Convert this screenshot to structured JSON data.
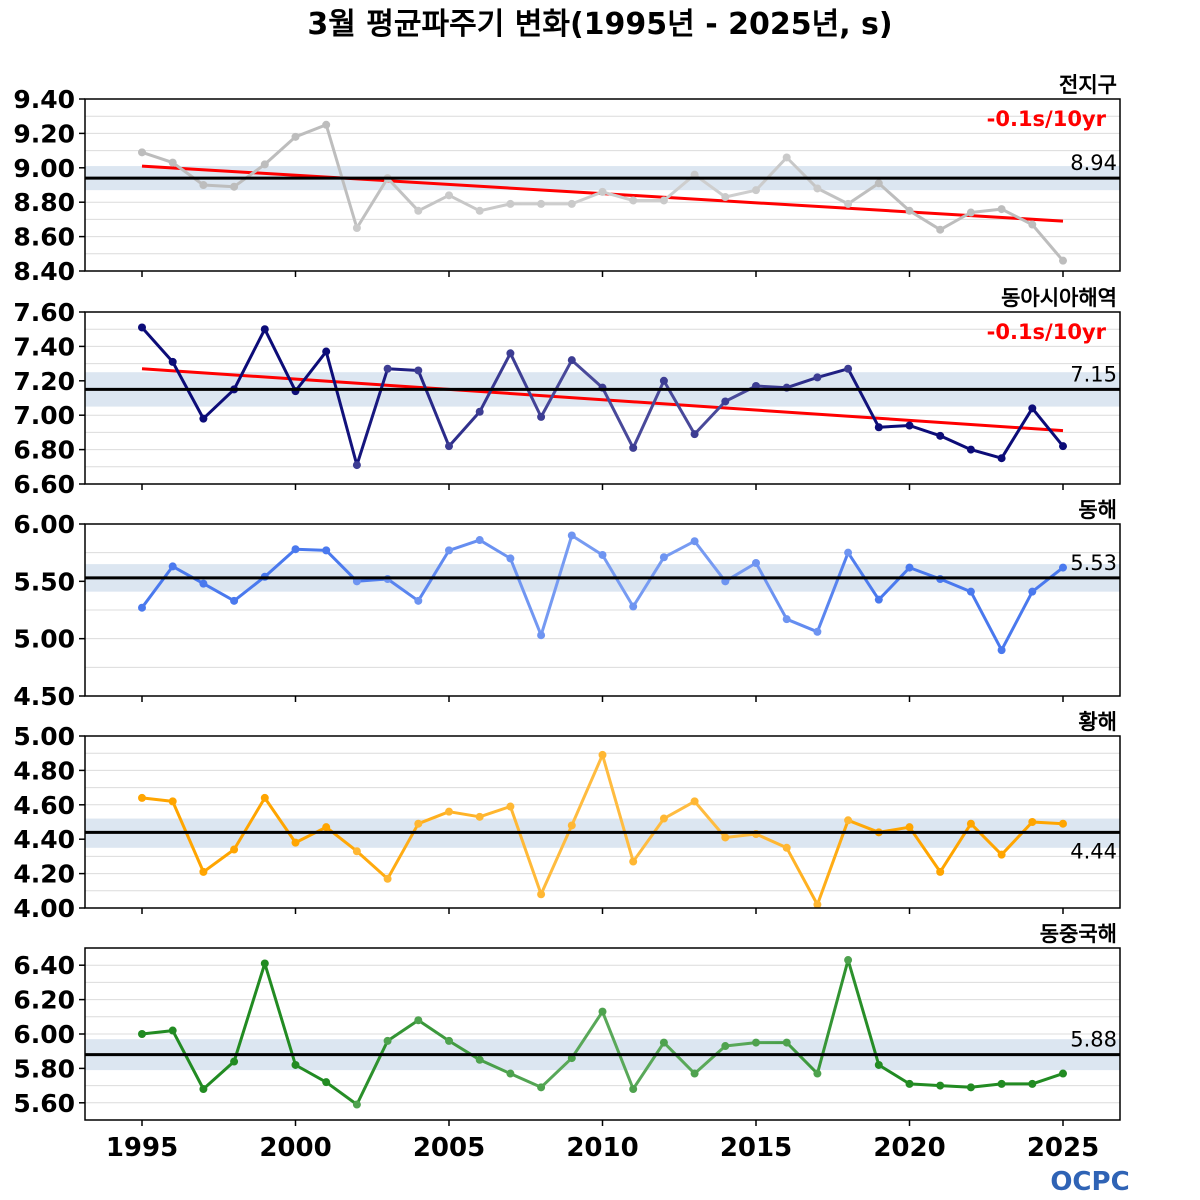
{
  "title": "3월 평균파주기 변화(1995년 - 2025년, s)",
  "logo": "OCPC",
  "x_ticks": [
    1995,
    2000,
    2005,
    2010,
    2015,
    2020,
    2025
  ],
  "chart_data": [
    {
      "type": "line",
      "region": "전지구",
      "color": "#bdbdbd",
      "x": [
        1995,
        1996,
        1997,
        1998,
        1999,
        2000,
        2001,
        2002,
        2003,
        2004,
        2005,
        2006,
        2007,
        2008,
        2009,
        2010,
        2011,
        2012,
        2013,
        2014,
        2015,
        2016,
        2017,
        2018,
        2019,
        2020,
        2021,
        2022,
        2023,
        2024,
        2025
      ],
      "values": [
        9.09,
        9.03,
        8.9,
        8.89,
        9.02,
        9.18,
        9.25,
        8.65,
        8.94,
        8.75,
        8.84,
        8.75,
        8.79,
        8.79,
        8.79,
        8.86,
        8.81,
        8.81,
        8.96,
        8.83,
        8.87,
        9.06,
        8.88,
        8.79,
        8.91,
        8.75,
        8.64,
        8.74,
        8.76,
        8.67,
        8.46
      ],
      "ylim": [
        8.4,
        9.4
      ],
      "yticks": [
        "9.40",
        "9.20",
        "9.00",
        "8.80",
        "8.60",
        "8.40"
      ],
      "mean": 8.94,
      "mean_label": "8.94",
      "mean_label_pos": "above",
      "band": [
        8.87,
        9.01
      ],
      "trend": {
        "label": "-0.1s/10yr",
        "start": 9.01,
        "end": 8.69
      }
    },
    {
      "type": "line",
      "region": "동아시아해역",
      "color": "#0c0c78",
      "x": [
        1995,
        1996,
        1997,
        1998,
        1999,
        2000,
        2001,
        2002,
        2003,
        2004,
        2005,
        2006,
        2007,
        2008,
        2009,
        2010,
        2011,
        2012,
        2013,
        2014,
        2015,
        2016,
        2017,
        2018,
        2019,
        2020,
        2021,
        2022,
        2023,
        2024,
        2025
      ],
      "values": [
        7.51,
        7.31,
        6.98,
        7.15,
        7.5,
        7.14,
        7.37,
        6.71,
        7.27,
        7.26,
        6.82,
        7.02,
        7.36,
        6.99,
        7.32,
        7.16,
        6.81,
        7.2,
        6.89,
        7.08,
        7.17,
        7.16,
        7.22,
        7.27,
        6.93,
        6.94,
        6.88,
        6.8,
        6.75,
        7.04,
        6.82
      ],
      "ylim": [
        6.6,
        7.6
      ],
      "yticks": [
        "7.60",
        "7.40",
        "7.20",
        "7.00",
        "6.80",
        "6.60"
      ],
      "mean": 7.15,
      "mean_label": "7.15",
      "mean_label_pos": "above",
      "band": [
        7.05,
        7.25
      ],
      "trend": {
        "label": "-0.1s/10yr",
        "start": 7.27,
        "end": 6.91
      }
    },
    {
      "type": "line",
      "region": "동해",
      "color": "#4a79ee",
      "x": [
        1995,
        1996,
        1997,
        1998,
        1999,
        2000,
        2001,
        2002,
        2003,
        2004,
        2005,
        2006,
        2007,
        2008,
        2009,
        2010,
        2011,
        2012,
        2013,
        2014,
        2015,
        2016,
        2017,
        2018,
        2019,
        2020,
        2021,
        2022,
        2023,
        2024,
        2025
      ],
      "values": [
        5.27,
        5.63,
        5.48,
        5.33,
        5.54,
        5.78,
        5.77,
        5.5,
        5.52,
        5.33,
        5.77,
        5.86,
        5.7,
        5.03,
        5.9,
        5.73,
        5.28,
        5.71,
        5.85,
        5.5,
        5.66,
        5.17,
        5.06,
        5.75,
        5.34,
        5.62,
        5.52,
        5.41,
        4.9,
        5.41,
        5.62
      ],
      "ylim": [
        4.5,
        6.0
      ],
      "yticks": [
        "6.00",
        "5.50",
        "5.00",
        "4.50"
      ],
      "mean": 5.53,
      "mean_label": "5.53",
      "mean_label_pos": "above",
      "band": [
        5.41,
        5.65
      ]
    },
    {
      "type": "line",
      "region": "황해",
      "color": "#ffa500",
      "x": [
        1995,
        1996,
        1997,
        1998,
        1999,
        2000,
        2001,
        2002,
        2003,
        2004,
        2005,
        2006,
        2007,
        2008,
        2009,
        2010,
        2011,
        2012,
        2013,
        2014,
        2015,
        2016,
        2017,
        2018,
        2019,
        2020,
        2021,
        2022,
        2023,
        2024,
        2025
      ],
      "values": [
        4.64,
        4.62,
        4.21,
        4.34,
        4.64,
        4.38,
        4.47,
        4.33,
        4.17,
        4.49,
        4.56,
        4.53,
        4.59,
        4.08,
        4.48,
        4.89,
        4.27,
        4.52,
        4.62,
        4.41,
        4.43,
        4.35,
        4.02,
        4.51,
        4.44,
        4.47,
        4.21,
        4.49,
        4.31,
        4.5,
        4.49
      ],
      "ylim": [
        4.0,
        5.0
      ],
      "yticks": [
        "5.00",
        "4.80",
        "4.60",
        "4.40",
        "4.20",
        "4.00"
      ],
      "mean": 4.44,
      "mean_label": "4.44",
      "mean_label_pos": "below",
      "band": [
        4.35,
        4.52
      ]
    },
    {
      "type": "line",
      "region": "동중국해",
      "color": "#228b22",
      "x": [
        1995,
        1996,
        1997,
        1998,
        1999,
        2000,
        2001,
        2002,
        2003,
        2004,
        2005,
        2006,
        2007,
        2008,
        2009,
        2010,
        2011,
        2012,
        2013,
        2014,
        2015,
        2016,
        2017,
        2018,
        2019,
        2020,
        2021,
        2022,
        2023,
        2024,
        2025
      ],
      "values": [
        6.0,
        6.02,
        5.68,
        5.84,
        6.41,
        5.82,
        5.72,
        5.59,
        5.96,
        6.08,
        5.96,
        5.85,
        5.77,
        5.69,
        5.86,
        6.13,
        5.68,
        5.95,
        5.77,
        5.93,
        5.95,
        5.95,
        5.77,
        6.43,
        5.82,
        5.71,
        5.7,
        5.69,
        5.71,
        5.71,
        5.77
      ],
      "ylim": [
        5.5,
        6.5
      ],
      "yticks": [
        "6.40",
        "6.20",
        "6.00",
        "5.80",
        "5.60"
      ],
      "mean": 5.88,
      "mean_label": "5.88",
      "mean_label_pos": "above",
      "band": [
        5.79,
        5.97
      ]
    }
  ]
}
